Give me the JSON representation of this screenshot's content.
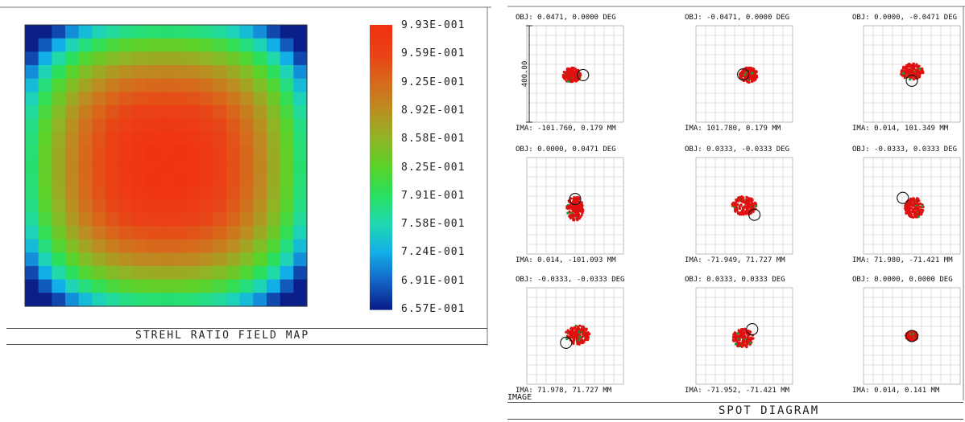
{
  "colormap": {
    "title": "STREHL RATIO FIELD MAP",
    "labels": [
      "9.93E-001",
      "9.59E-001",
      "9.25E-001",
      "8.92E-001",
      "8.58E-001",
      "8.25E-001",
      "7.91E-001",
      "7.58E-001",
      "7.24E-001",
      "6.91E-001",
      "6.57E-001"
    ],
    "min_value": 0.657,
    "max_value": 0.993,
    "grid_size": 21,
    "colors": [
      "#0a1f8a",
      "#1466c8",
      "#12b0e8",
      "#20d8b0",
      "#28e060",
      "#5ad22a",
      "#8fb526",
      "#b98f22",
      "#d76a1c",
      "#ea4216",
      "#f03210"
    ]
  },
  "chart_data": [
    {
      "type": "heatmap",
      "title": "STREHL RATIO FIELD MAP",
      "colorbar_ticks": [
        0.993,
        0.959,
        0.925,
        0.892,
        0.858,
        0.825,
        0.791,
        0.758,
        0.724,
        0.691,
        0.657
      ],
      "value_range": [
        0.657,
        0.993
      ],
      "grid": "21x21",
      "pattern": "radial decrease from center maximum ~0.993 to corners ~0.657"
    },
    {
      "type": "scatter",
      "title": "SPOT DIAGRAM",
      "scale_bar_label": "400.00",
      "spots": [
        {
          "obj": "OBJ: 0.0471, 0.0000 DEG",
          "ima": "IMA: -101.760, 0.179 MM",
          "circle_dx": 0.35,
          "circle_dy": 0.05,
          "blob_dx": -0.15,
          "blob_dy": 0.05,
          "blob_rx": 0.33,
          "blob_ry": 0.28
        },
        {
          "obj": "OBJ: -0.0471, 0.0000 DEG",
          "ima": "IMA: 101.780, 0.179 MM",
          "circle_dx": -0.05,
          "circle_dy": 0.02,
          "blob_dx": 0.2,
          "blob_dy": 0.05,
          "blob_rx": 0.33,
          "blob_ry": 0.28
        },
        {
          "obj": "OBJ: 0.0000, -0.0471 DEG",
          "ima": "IMA: 0.014, 101.349 MM",
          "circle_dx": 0.0,
          "circle_dy": 0.3,
          "blob_dx": 0.0,
          "blob_dy": -0.1,
          "blob_rx": 0.42,
          "blob_ry": 0.3
        },
        {
          "obj": "OBJ: 0.0000, 0.0471 DEG",
          "ima": "IMA: 0.014, -101.093 MM",
          "circle_dx": 0.0,
          "circle_dy": -0.3,
          "blob_dx": 0.0,
          "blob_dy": 0.12,
          "blob_rx": 0.3,
          "blob_ry": 0.45
        },
        {
          "obj": "OBJ: 0.0333, -0.0333 DEG",
          "ima": "IMA: -71.949, 71.727 MM",
          "circle_dx": 0.45,
          "circle_dy": 0.4,
          "blob_dx": 0.0,
          "blob_dy": 0.0,
          "blob_rx": 0.45,
          "blob_ry": 0.35
        },
        {
          "obj": "OBJ: -0.0333, 0.0333 DEG",
          "ima": "IMA: 71.980, -71.421 MM",
          "circle_dx": -0.4,
          "circle_dy": -0.35,
          "blob_dx": 0.1,
          "blob_dy": 0.1,
          "blob_rx": 0.35,
          "blob_ry": 0.38
        },
        {
          "obj": "OBJ: -0.0333, -0.0333 DEG",
          "ima": "IMA: 71.978, 71.727 MM",
          "circle_dx": -0.4,
          "circle_dy": 0.3,
          "blob_dx": 0.1,
          "blob_dy": -0.05,
          "blob_rx": 0.45,
          "blob_ry": 0.35
        },
        {
          "obj": "OBJ: 0.0333, 0.0333 DEG",
          "ima": "IMA: -71.952, -71.421 MM",
          "circle_dx": 0.35,
          "circle_dy": -0.3,
          "blob_dx": -0.05,
          "blob_dy": 0.1,
          "blob_rx": 0.38,
          "blob_ry": 0.35
        },
        {
          "obj": "OBJ: 0.0000, 0.0000 DEG",
          "ima": "IMA: 0.014, 0.141 MM",
          "circle_dx": 0.0,
          "circle_dy": 0.0,
          "blob_dx": 0.0,
          "blob_dy": 0.0,
          "blob_rx": 0.22,
          "blob_ry": 0.18
        }
      ]
    }
  ],
  "spot": {
    "title": "SPOT DIAGRAM",
    "scale_label": "400.00",
    "image_tag": "IMAGE"
  }
}
